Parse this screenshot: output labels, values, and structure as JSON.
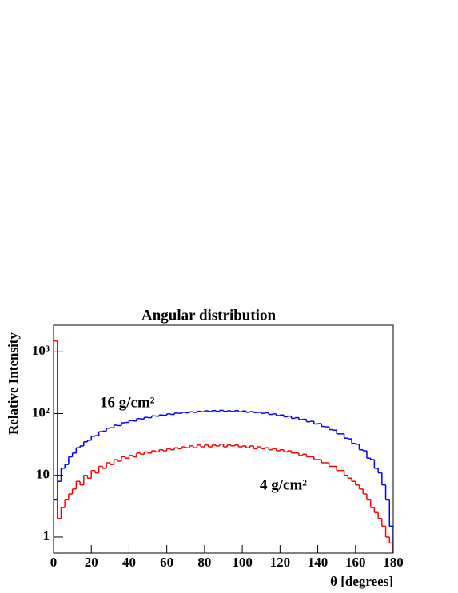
{
  "chart_data": {
    "type": "histogram",
    "title": "Angular distribution",
    "xlabel": "θ [degrees]",
    "ylabel": "Relative Intensity",
    "bins": [
      0,
      2,
      4,
      6,
      8,
      10,
      12,
      14,
      16,
      18,
      20,
      22,
      24,
      26,
      28,
      30,
      32,
      34,
      36,
      38,
      40,
      42,
      44,
      46,
      48,
      50,
      52,
      54,
      56,
      58,
      60,
      62,
      64,
      66,
      68,
      70,
      72,
      74,
      76,
      78,
      80,
      82,
      84,
      86,
      88,
      90,
      92,
      94,
      96,
      98,
      100,
      102,
      104,
      106,
      108,
      110,
      112,
      114,
      116,
      118,
      120,
      122,
      124,
      126,
      128,
      130,
      132,
      134,
      136,
      138,
      140,
      142,
      144,
      146,
      148,
      150,
      152,
      154,
      156,
      158,
      160,
      162,
      164,
      166,
      168,
      170,
      172,
      174,
      176,
      178,
      180
    ],
    "series": [
      {
        "color": "#0000ff",
        "values": [
          4,
          8,
          13,
          15,
          20,
          23,
          28,
          30,
          35,
          37,
          43,
          44,
          51,
          52,
          58,
          59,
          65,
          64,
          71,
          72,
          77,
          76,
          83,
          82,
          87,
          86,
          92,
          91,
          95,
          94,
          99,
          97,
          102,
          101,
          105,
          103,
          107,
          105,
          109,
          107,
          111,
          108,
          112,
          109,
          113,
          109,
          111,
          108,
          112,
          107,
          110,
          105,
          108,
          104,
          105,
          101,
          103,
          97,
          99,
          93,
          95,
          89,
          91,
          84,
          86,
          80,
          81,
          74,
          75,
          68,
          69,
          62,
          61,
          55,
          54,
          47,
          47,
          40,
          39,
          33,
          32,
          26,
          25,
          19,
          18,
          13,
          11,
          7,
          4,
          1.5
        ]
      },
      {
        "color": "#ff0000",
        "values": [
          1500,
          2,
          3,
          4,
          5,
          6,
          8,
          7,
          10,
          9,
          12,
          11,
          14,
          13,
          16,
          15,
          18,
          17,
          20,
          19,
          21,
          20,
          23,
          22,
          24,
          23,
          25,
          24,
          26,
          25,
          27,
          26,
          28,
          27,
          29,
          28,
          30,
          28,
          31,
          29,
          31,
          29,
          31,
          30,
          32,
          29,
          31,
          30,
          31,
          29,
          30,
          28,
          30,
          27,
          29,
          27,
          28,
          26,
          27,
          25,
          26,
          24,
          25,
          23,
          23,
          21,
          22,
          20,
          20,
          18,
          18,
          16,
          16,
          14,
          14,
          12,
          12,
          10,
          9,
          8,
          7,
          6,
          5,
          4,
          3,
          2.5,
          2,
          1.5,
          1,
          0.8
        ]
      }
    ],
    "annotations": [
      {
        "text": "16 g/cm²",
        "color": "#0000ff"
      },
      {
        "text": "4 g/cm²",
        "color": "#ff0000"
      }
    ],
    "xlim": [
      0,
      180
    ],
    "xticks": [
      0,
      20,
      40,
      60,
      80,
      100,
      120,
      140,
      160,
      180
    ],
    "ylim": [
      0.55,
      2700
    ],
    "log_y": true,
    "yticks": [
      1,
      10,
      {
        "value": 100,
        "label": "10²"
      },
      {
        "value": 1000,
        "label": "10³"
      }
    ],
    "grid": false
  }
}
